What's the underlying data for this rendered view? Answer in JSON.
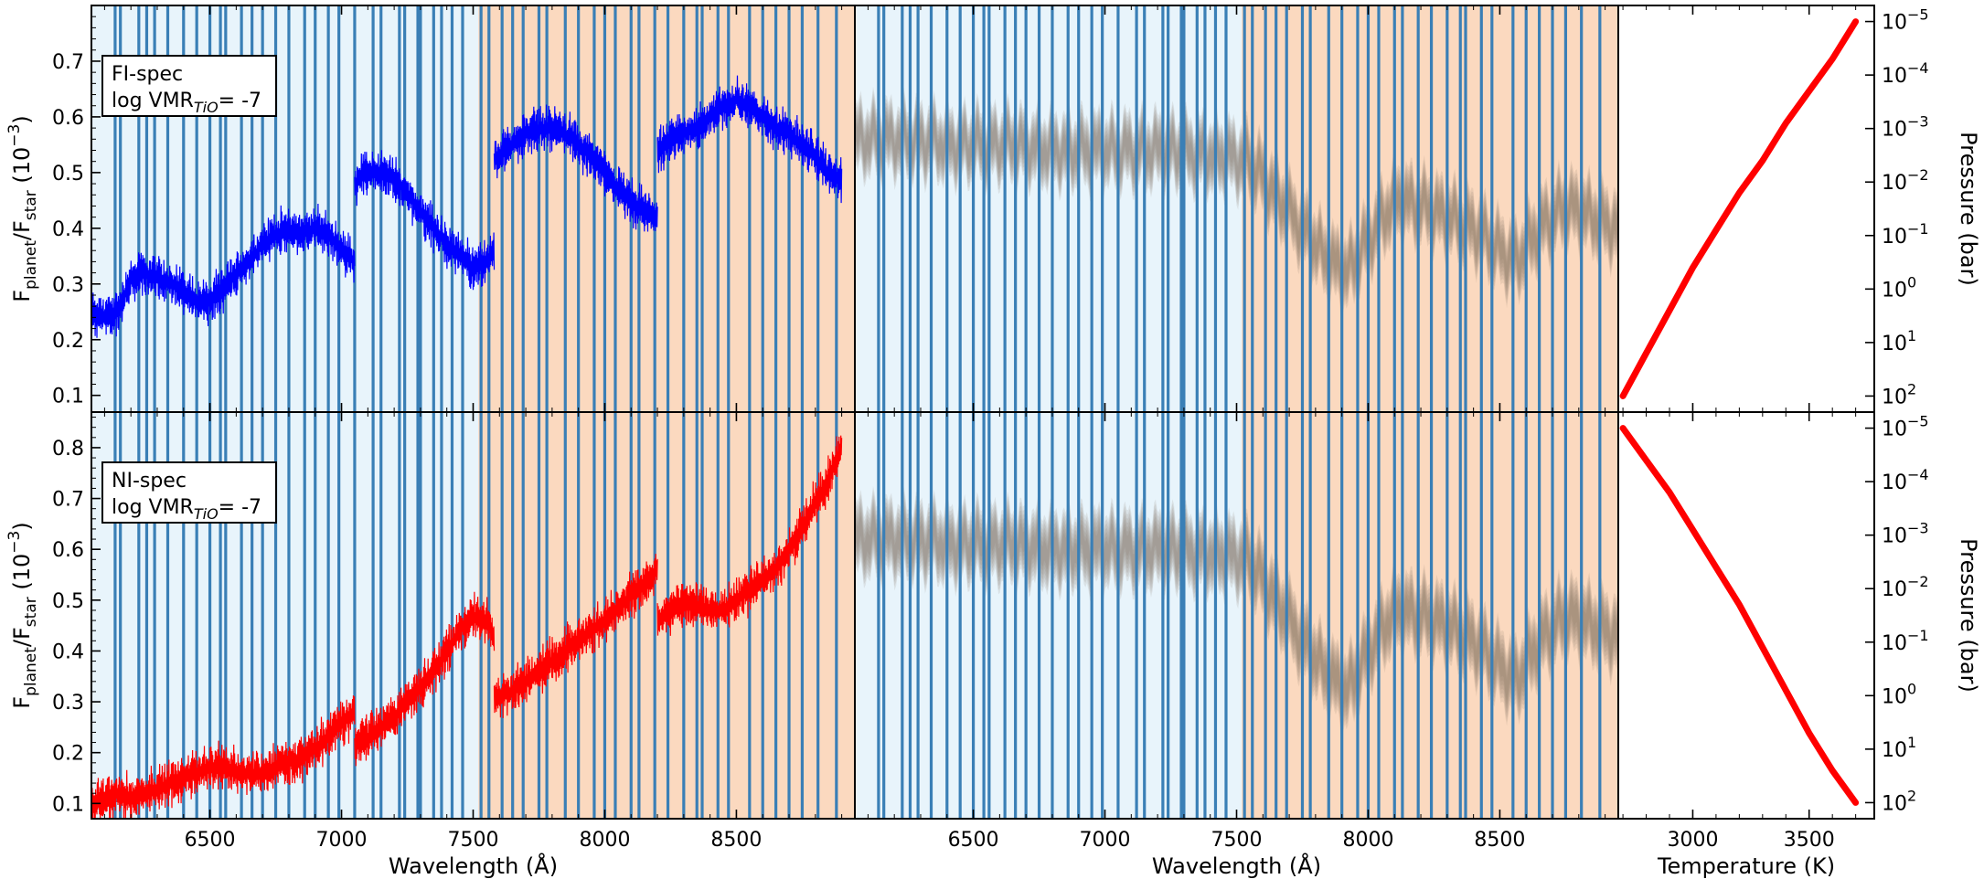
{
  "colors": {
    "blue_band": "#e8f4fb",
    "orange_band": "#fbd9bf",
    "line_marker": "#3a7fb6",
    "fi_spec": "#0000ff",
    "ni_spec": "#ff0000",
    "pt_profile": "#ff0000",
    "model_spread": "#7a6a5e"
  },
  "chart_data": [
    {
      "id": "fi-spectrum",
      "type": "line",
      "legend_text": [
        "FI-spec",
        "log VMR",
        "TiO",
        "= -7"
      ],
      "ylabel": [
        "F",
        "planet",
        "/F",
        "star",
        " (10",
        "−3",
        ")"
      ],
      "xlabel": "",
      "xlim": [
        6050,
        8950
      ],
      "ylim": [
        0.07,
        0.8
      ],
      "xticks": [
        6500,
        7000,
        7500,
        8000,
        8500
      ],
      "yticks": [
        0.1,
        0.2,
        0.3,
        0.4,
        0.5,
        0.6,
        0.7
      ],
      "ytick_labels": [
        "0.1",
        "0.2",
        "0.3",
        "0.4",
        "0.5",
        "0.6",
        "0.7"
      ],
      "blue_band": [
        6050,
        7520
      ],
      "orange_band": [
        7520,
        8950
      ],
      "series": [
        {
          "color": "fi-blue",
          "segments": [
            {
              "x": [
                6050,
                6100,
                6150,
                6200,
                6250,
                6300,
                6350,
                6400,
                6450,
                6500,
                6550,
                6600,
                6650,
                6700,
                6750,
                6800,
                6850,
                6900,
                6950,
                7000,
                7050
              ],
              "y": [
                0.25,
                0.24,
                0.25,
                0.31,
                0.32,
                0.31,
                0.3,
                0.29,
                0.27,
                0.27,
                0.29,
                0.32,
                0.34,
                0.37,
                0.39,
                0.4,
                0.39,
                0.4,
                0.39,
                0.36,
                0.34
              ]
            },
            {
              "x": [
                7050,
                7100,
                7150,
                7200,
                7250,
                7300,
                7350,
                7400,
                7450,
                7500,
                7550,
                7580
              ],
              "y": [
                0.48,
                0.5,
                0.5,
                0.49,
                0.46,
                0.43,
                0.4,
                0.37,
                0.35,
                0.33,
                0.34,
                0.36
              ]
            },
            {
              "x": [
                7580,
                7650,
                7700,
                7750,
                7800,
                7850,
                7900,
                7950,
                8000,
                8050,
                8100,
                8150,
                8200
              ],
              "y": [
                0.52,
                0.55,
                0.57,
                0.58,
                0.58,
                0.57,
                0.55,
                0.53,
                0.5,
                0.47,
                0.45,
                0.43,
                0.42
              ]
            },
            {
              "x": [
                8200,
                8250,
                8300,
                8350,
                8400,
                8450,
                8500,
                8550,
                8600,
                8650,
                8700,
                8750,
                8800,
                8850,
                8900
              ],
              "y": [
                0.54,
                0.56,
                0.57,
                0.58,
                0.6,
                0.62,
                0.63,
                0.62,
                0.6,
                0.58,
                0.57,
                0.55,
                0.53,
                0.5,
                0.48
              ]
            }
          ],
          "noise": 0.035
        }
      ]
    },
    {
      "id": "fi-model",
      "type": "line",
      "xlabel": "",
      "xlim": [
        6050,
        8950
      ],
      "ylim": [
        0.07,
        0.8
      ],
      "xticks": [
        6500,
        7000,
        7500,
        8000,
        8500
      ],
      "blue_band": [
        6050,
        7520
      ],
      "orange_band": [
        7520,
        8950
      ],
      "series": [
        {
          "color": "spread",
          "x": [
            6050,
            6250,
            6450,
            6650,
            6850,
            7050,
            7250,
            7450,
            7550,
            7650,
            7750,
            7850,
            7920,
            8000,
            8100,
            8200,
            8300,
            8400,
            8500,
            8560,
            8650,
            8750,
            8850,
            8950
          ],
          "y": [
            0.56,
            0.56,
            0.55,
            0.55,
            0.54,
            0.54,
            0.54,
            0.53,
            0.52,
            0.46,
            0.4,
            0.34,
            0.32,
            0.38,
            0.45,
            0.44,
            0.42,
            0.4,
            0.36,
            0.34,
            0.4,
            0.44,
            0.42,
            0.4
          ],
          "spread": 0.06
        }
      ]
    },
    {
      "id": "fi-pt-profile",
      "type": "line",
      "xlabel": "",
      "ylabel": "Pressure (bar)",
      "xlim": [
        2680,
        3780
      ],
      "ylog_range": [
        2.3,
        -5.3
      ],
      "xticks": [
        3000,
        3500
      ],
      "ytick_exponents": [
        -5,
        -4,
        -3,
        -2,
        -1,
        0,
        1,
        2
      ],
      "ytick_labels": [
        [
          "10",
          "−5"
        ],
        [
          "10",
          "−4"
        ],
        [
          "10",
          "−3"
        ],
        [
          "10",
          "−2"
        ],
        [
          "10",
          "−1"
        ],
        [
          "10",
          "0"
        ],
        [
          "10",
          "1"
        ],
        [
          "10",
          "2"
        ]
      ],
      "series": [
        {
          "color": "pt",
          "x": [
            2700,
            2800,
            2900,
            3000,
            3100,
            3200,
            3300,
            3400,
            3500,
            3600,
            3700
          ],
          "logp": [
            2.0,
            1.2,
            0.4,
            -0.4,
            -1.1,
            -1.8,
            -2.4,
            -3.1,
            -3.7,
            -4.3,
            -5.0
          ]
        }
      ]
    },
    {
      "id": "ni-spectrum",
      "type": "line",
      "legend_text": [
        "NI-spec",
        "log VMR",
        "TiO",
        "= -7"
      ],
      "ylabel": [
        "F",
        "planet",
        "/F",
        "star",
        " (10",
        "−3",
        ")"
      ],
      "xlabel": "Wavelength (Å)",
      "xlim": [
        6050,
        8950
      ],
      "ylim": [
        0.07,
        0.87
      ],
      "xticks": [
        6500,
        7000,
        7500,
        8000,
        8500
      ],
      "yticks": [
        0.1,
        0.2,
        0.3,
        0.4,
        0.5,
        0.6,
        0.7,
        0.8
      ],
      "ytick_labels": [
        "0.1",
        "0.2",
        "0.3",
        "0.4",
        "0.5",
        "0.6",
        "0.7",
        "0.8"
      ],
      "blue_band": [
        6050,
        7520
      ],
      "orange_band": [
        7520,
        8950
      ],
      "series": [
        {
          "color": "ni-red",
          "segments": [
            {
              "x": [
                6050,
                6100,
                6150,
                6200,
                6250,
                6300,
                6350,
                6400,
                6450,
                6500,
                6550,
                6600,
                6650,
                6700,
                6750,
                6800,
                6850,
                6900,
                6950,
                7000,
                7050
              ],
              "y": [
                0.1,
                0.11,
                0.12,
                0.11,
                0.12,
                0.13,
                0.14,
                0.15,
                0.16,
                0.17,
                0.17,
                0.16,
                0.16,
                0.16,
                0.17,
                0.18,
                0.19,
                0.21,
                0.23,
                0.26,
                0.28
              ]
            },
            {
              "x": [
                7050,
                7100,
                7150,
                7200,
                7250,
                7300,
                7350,
                7400,
                7450,
                7500,
                7550,
                7580
              ],
              "y": [
                0.22,
                0.23,
                0.25,
                0.27,
                0.3,
                0.33,
                0.36,
                0.4,
                0.44,
                0.47,
                0.46,
                0.43
              ]
            },
            {
              "x": [
                7580,
                7650,
                7700,
                7750,
                7800,
                7850,
                7900,
                7950,
                8000,
                8050,
                8100,
                8150,
                8200
              ],
              "y": [
                0.31,
                0.32,
                0.34,
                0.36,
                0.38,
                0.4,
                0.42,
                0.44,
                0.46,
                0.48,
                0.51,
                0.53,
                0.56
              ]
            },
            {
              "x": [
                8200,
                8250,
                8300,
                8350,
                8400,
                8450,
                8500,
                8550,
                8600,
                8650,
                8700,
                8750,
                8800,
                8850,
                8900
              ],
              "y": [
                0.46,
                0.48,
                0.5,
                0.49,
                0.48,
                0.48,
                0.5,
                0.52,
                0.54,
                0.56,
                0.6,
                0.64,
                0.69,
                0.74,
                0.8
              ]
            }
          ],
          "noise": 0.04
        }
      ]
    },
    {
      "id": "ni-model",
      "type": "line",
      "xlabel": "Wavelength (Å)",
      "xlim": [
        6050,
        8950
      ],
      "ylim": [
        0.07,
        0.87
      ],
      "xticks": [
        6500,
        7000,
        7500,
        8000,
        8500
      ],
      "blue_band": [
        6050,
        7520
      ],
      "orange_band": [
        7520,
        8950
      ],
      "series": [
        {
          "color": "spread",
          "x": [
            6050,
            6250,
            6450,
            6650,
            6850,
            7050,
            7250,
            7450,
            7550,
            7650,
            7750,
            7850,
            7920,
            8000,
            8100,
            8200,
            8300,
            8400,
            8500,
            8560,
            8650,
            8750,
            8850,
            8950
          ],
          "y": [
            0.62,
            0.62,
            0.61,
            0.61,
            0.6,
            0.6,
            0.6,
            0.59,
            0.58,
            0.5,
            0.42,
            0.35,
            0.32,
            0.4,
            0.48,
            0.47,
            0.45,
            0.42,
            0.37,
            0.34,
            0.42,
            0.47,
            0.45,
            0.43
          ],
          "spread": 0.07
        }
      ]
    },
    {
      "id": "ni-pt-profile",
      "type": "line",
      "xlabel": "Temperature (K)",
      "ylabel": "Pressure (bar)",
      "xlim": [
        2680,
        3780
      ],
      "ylog_range": [
        2.3,
        -5.3
      ],
      "xticks": [
        3000,
        3500
      ],
      "ytick_exponents": [
        -5,
        -4,
        -3,
        -2,
        -1,
        0,
        1,
        2
      ],
      "ytick_labels": [
        [
          "10",
          "−5"
        ],
        [
          "10",
          "−4"
        ],
        [
          "10",
          "−3"
        ],
        [
          "10",
          "−2"
        ],
        [
          "10",
          "−1"
        ],
        [
          "10",
          "0"
        ],
        [
          "10",
          "1"
        ],
        [
          "10",
          "2"
        ]
      ],
      "series": [
        {
          "color": "pt",
          "x": [
            2700,
            2800,
            2900,
            3000,
            3100,
            3200,
            3300,
            3400,
            3500,
            3600,
            3700
          ],
          "logp": [
            -5.0,
            -4.4,
            -3.8,
            -3.1,
            -2.4,
            -1.7,
            -0.9,
            -0.1,
            0.7,
            1.4,
            2.0
          ]
        }
      ]
    }
  ],
  "line_markers": [
    6140,
    6160,
    6230,
    6260,
    6290,
    6340,
    6400,
    6450,
    6500,
    6540,
    6560,
    6620,
    6660,
    6700,
    6750,
    6800,
    6860,
    6900,
    6950,
    6990,
    7050,
    7120,
    7150,
    7220,
    7240,
    7290,
    7300,
    7350,
    7380,
    7420,
    7460,
    7530,
    7560,
    7610,
    7650,
    7690,
    7750,
    7780,
    7850,
    7900,
    7960,
    8000,
    8040,
    8100,
    8130,
    8190,
    8240,
    8300,
    8350,
    8370,
    8430,
    8470,
    8550,
    8600,
    8650,
    8700,
    8750,
    8810,
    8880
  ]
}
